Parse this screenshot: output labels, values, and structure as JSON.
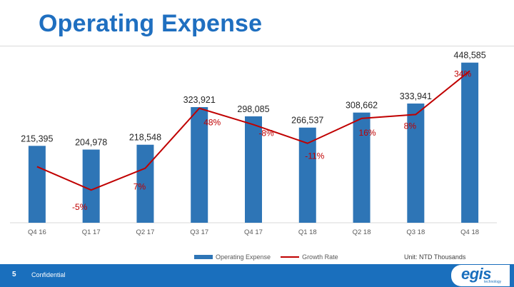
{
  "slide": {
    "title": "Operating Expense",
    "page_number": "5",
    "confidential_label": "Confidential",
    "logo_text": "egis",
    "logo_subtext": "technology"
  },
  "chart_data": {
    "type": "bar",
    "title": "Operating Expense",
    "categories": [
      "Q4 16",
      "Q1 17",
      "Q2 17",
      "Q3 17",
      "Q4 17",
      "Q1 18",
      "Q2 18",
      "Q3 18",
      "Q4 18"
    ],
    "series": [
      {
        "name": "Operating Expense",
        "type": "bar",
        "values": [
          215395,
          204978,
          218548,
          323921,
          298085,
          266537,
          308662,
          333941,
          448585
        ],
        "labels": [
          "215,395",
          "204,978",
          "218,548",
          "323,921",
          "298,085",
          "266,537",
          "308,662",
          "333,941",
          "448,585"
        ]
      },
      {
        "name": "Growth Rate",
        "type": "line",
        "values": [
          null,
          -5,
          7,
          48,
          -8,
          -11,
          16,
          8,
          34
        ],
        "labels": [
          "",
          "-5%",
          "7%",
          "48%",
          "-8%",
          "-11%",
          "16%",
          "8%",
          "34%"
        ],
        "line_points": [
          -28,
          -58,
          -30,
          47,
          26,
          2,
          34,
          39,
          95
        ],
        "line_range": [
          -100,
          120
        ]
      }
    ],
    "ylim": [
      0,
      480000
    ],
    "legend": [
      "Operating Expense",
      "Growth Rate"
    ],
    "legend_position": "bottom",
    "unit_note": "Unit: NTD Thousands",
    "colors": {
      "bar": "#2e75b6",
      "line": "#c00000"
    }
  }
}
